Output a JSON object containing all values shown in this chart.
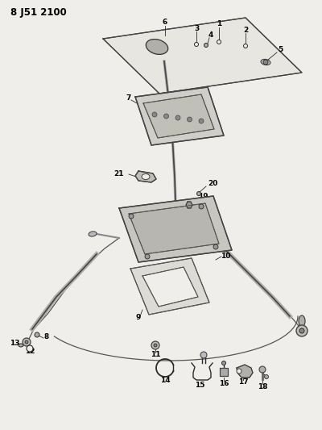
{
  "title": "8 J51 2100",
  "bg_color": "#f0eeea",
  "line_color": "#2a2a2a",
  "label_color": "#000000",
  "title_fontsize": 8.5,
  "label_fontsize": 6.5,
  "figsize": [
    4.0,
    5.33
  ],
  "dpi": 100
}
